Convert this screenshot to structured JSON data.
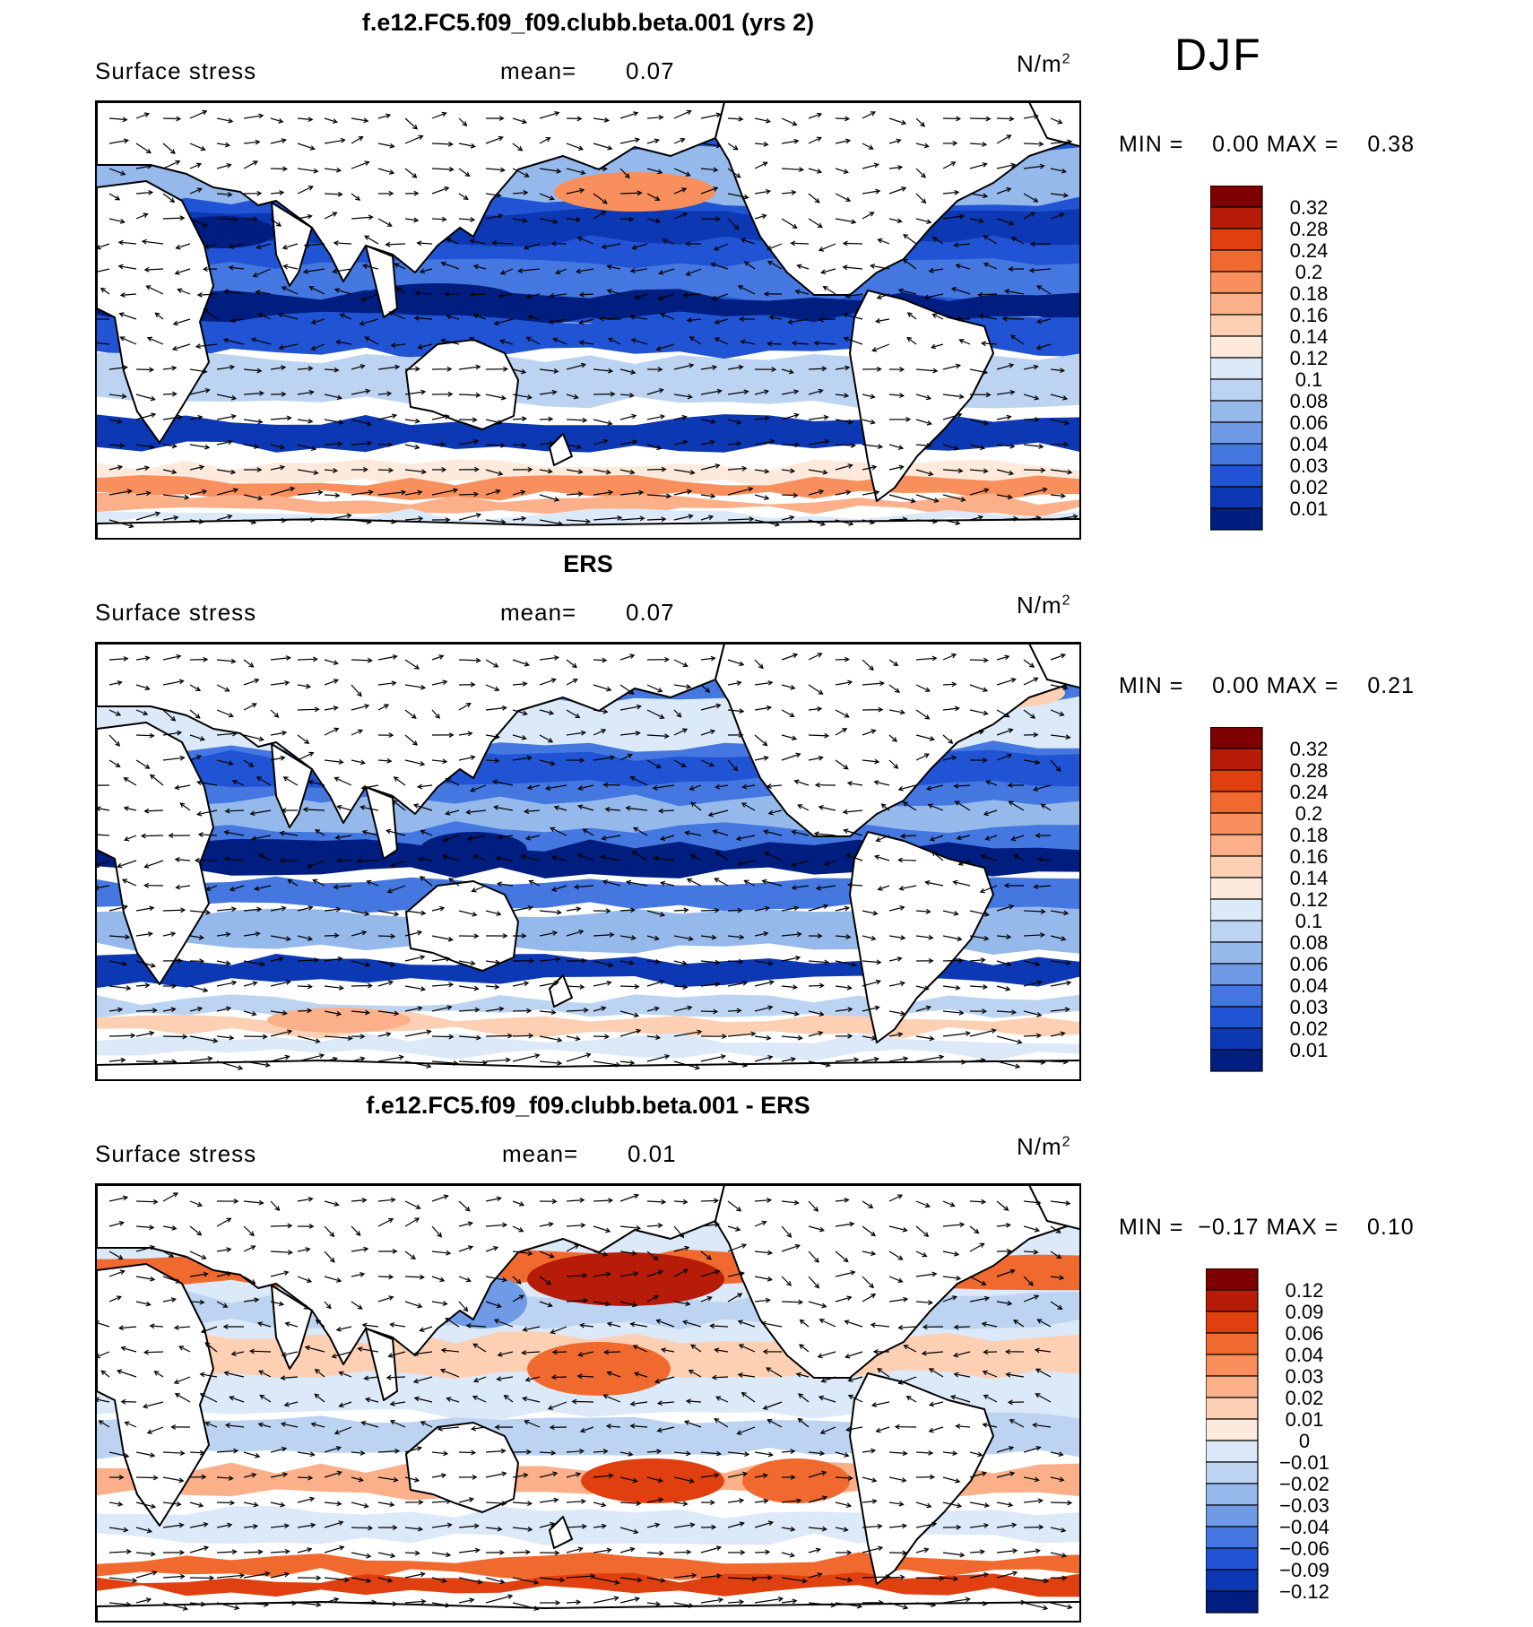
{
  "season": "DJF",
  "panels": [
    {
      "title": "f.e12.FC5.f09_f09.clubb.beta.001 (yrs 2)",
      "variable": "Surface stress",
      "mean_label": "mean=",
      "mean_value": "0.07",
      "units": "N/m",
      "units_exp": "2",
      "min_label": "MIN =",
      "min_value": "0.00",
      "max_label": "MAX =",
      "max_value": "0.38"
    },
    {
      "title": "ERS",
      "variable": "Surface stress",
      "mean_label": "mean=",
      "mean_value": "0.07",
      "units": "N/m",
      "units_exp": "2",
      "min_label": "MIN =",
      "min_value": "0.00",
      "max_label": "MAX =",
      "max_value": "0.21"
    },
    {
      "title": "f.e12.FC5.f09_f09.clubb.beta.001 - ERS",
      "variable": "Surface stress",
      "mean_label": "mean=",
      "mean_value": "0.01",
      "units": "N/m",
      "units_exp": "2",
      "min_label": "MIN =",
      "min_value": "−0.17",
      "max_label": "MAX =",
      "max_value": "0.10"
    }
  ],
  "chart_data": [
    {
      "type": "heatmap",
      "title": "f.e12.FC5.f09_f09.clubb.beta.001 (yrs 2)",
      "field": "Surface stress (N/m2), DJF, with wind-stress vectors",
      "colorbar_levels": [
        "0.32",
        "0.28",
        "0.24",
        "0.2",
        "0.18",
        "0.16",
        "0.14",
        "0.12",
        "0.1",
        "0.08",
        "0.06",
        "0.04",
        "0.03",
        "0.02",
        "0.01"
      ],
      "colors": [
        "#7f0000",
        "#b71c08",
        "#e0400f",
        "#f06a30",
        "#f88f5c",
        "#fcb08a",
        "#fdd0b4",
        "#fdeadc",
        "#dbe9f8",
        "#bcd4f2",
        "#96b9ec",
        "#6f9be6",
        "#4477e0",
        "#2154d4",
        "#0d38b3",
        "#001e80"
      ],
      "min": 0.0,
      "max": 0.38,
      "mean": 0.07
    },
    {
      "type": "heatmap",
      "title": "ERS",
      "field": "Surface stress (N/m2), DJF, with wind-stress vectors",
      "colorbar_levels": [
        "0.32",
        "0.28",
        "0.24",
        "0.2",
        "0.18",
        "0.16",
        "0.14",
        "0.12",
        "0.1",
        "0.08",
        "0.06",
        "0.04",
        "0.03",
        "0.02",
        "0.01"
      ],
      "colors": [
        "#7f0000",
        "#b71c08",
        "#e0400f",
        "#f06a30",
        "#f88f5c",
        "#fcb08a",
        "#fdd0b4",
        "#fdeadc",
        "#dbe9f8",
        "#bcd4f2",
        "#96b9ec",
        "#6f9be6",
        "#4477e0",
        "#2154d4",
        "#0d38b3",
        "#001e80"
      ],
      "min": 0.0,
      "max": 0.21,
      "mean": 0.07
    },
    {
      "type": "heatmap",
      "title": "f.e12.FC5.f09_f09.clubb.beta.001 - ERS",
      "field": "Surface stress difference (N/m2), DJF, with difference vectors",
      "colorbar_levels": [
        "0.12",
        "0.09",
        "0.06",
        "0.04",
        "0.03",
        "0.02",
        "0.01",
        "0",
        "−0.01",
        "−0.02",
        "−0.03",
        "−0.04",
        "−0.06",
        "−0.09",
        "−0.12"
      ],
      "colors": [
        "#7f0000",
        "#b71c08",
        "#e0400f",
        "#f06a30",
        "#f88f5c",
        "#fcb08a",
        "#fdd0b4",
        "#fdeadc",
        "#dbe9f8",
        "#bcd4f2",
        "#96b9ec",
        "#6f9be6",
        "#4477e0",
        "#2154d4",
        "#0d38b3",
        "#001e80"
      ],
      "min": -0.17,
      "max": 0.1,
      "mean": 0.01
    }
  ]
}
